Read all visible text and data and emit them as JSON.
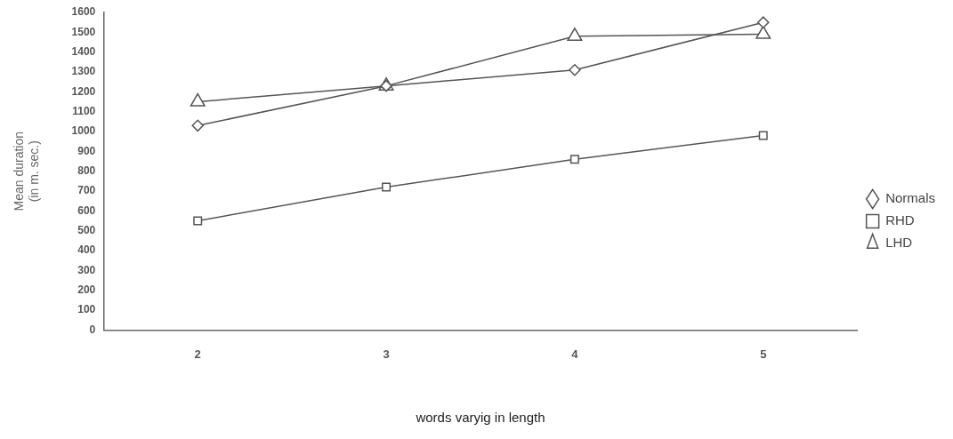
{
  "chart_data": {
    "type": "line",
    "xlabel": "words varyig in length",
    "ylabel": "Mean duration\n(in m. sec.)",
    "categories": [
      "2",
      "3",
      "4",
      "5"
    ],
    "series": [
      {
        "name": "Normals",
        "color": "#555555",
        "marker": "diamond",
        "values": [
          1030,
          1230,
          1310,
          1550
        ]
      },
      {
        "name": "RHD",
        "color": "#555555",
        "marker": "square",
        "values": [
          550,
          720,
          860,
          980
        ]
      },
      {
        "name": "LHD",
        "color": "#555555",
        "marker": "triangle",
        "values": [
          1150,
          1230,
          1480,
          1490
        ]
      }
    ],
    "ylim": [
      0,
      1600
    ],
    "yticks": [
      0,
      100,
      200,
      300,
      400,
      500,
      600,
      700,
      800,
      900,
      1000,
      1100,
      1200,
      1300,
      1400,
      1500,
      1600
    ],
    "grid": false,
    "legend": "right",
    "line_style": "solid"
  }
}
